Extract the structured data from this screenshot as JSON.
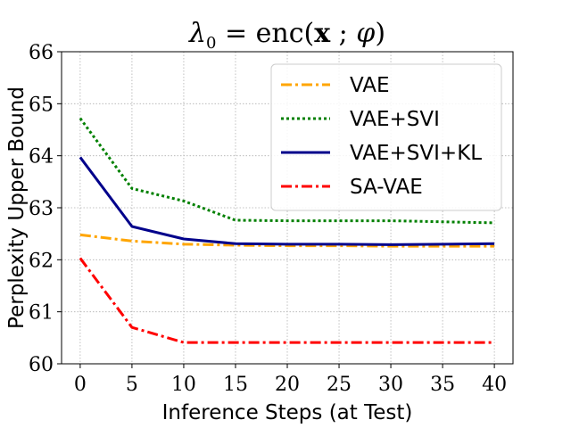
{
  "chart_data": {
    "type": "line",
    "title": "λ₀ = enc(x ; φ)",
    "title_parts": {
      "lambda": "λ",
      "subscript": "0",
      "eq": " = enc(",
      "bold_x": "x",
      "sep": " ; ",
      "phi": "φ",
      "close": ")"
    },
    "xlabel": "Inference Steps (at Test)",
    "ylabel": "Perplexity Upper Bound",
    "x": [
      0,
      5,
      10,
      15,
      20,
      25,
      30,
      35,
      40
    ],
    "xticks": [
      "0",
      "5",
      "10",
      "15",
      "20",
      "25",
      "30",
      "35",
      "40"
    ],
    "yticks": [
      "60",
      "61",
      "62",
      "63",
      "64",
      "65",
      "66"
    ],
    "xlim": [
      -1.8,
      41.8
    ],
    "ylim": [
      60,
      66
    ],
    "grid": true,
    "legend_position": "top-right",
    "series": [
      {
        "name": "VAE",
        "color": "#FFA500",
        "style": "dashdot",
        "values": [
          62.48,
          62.36,
          62.3,
          62.28,
          62.27,
          62.27,
          62.26,
          62.26,
          62.26
        ]
      },
      {
        "name": "VAE+SVI",
        "color": "#008000",
        "style": "dotted",
        "values": [
          64.72,
          63.37,
          63.13,
          62.76,
          62.75,
          62.75,
          62.75,
          62.73,
          62.71
        ]
      },
      {
        "name": "VAE+SVI+KL",
        "color": "#00008B",
        "style": "solid",
        "values": [
          63.97,
          62.64,
          62.4,
          62.31,
          62.3,
          62.3,
          62.29,
          62.3,
          62.31
        ]
      },
      {
        "name": "SA-VAE",
        "color": "#FF0000",
        "style": "dashdot",
        "values": [
          62.03,
          60.7,
          60.41,
          60.41,
          60.41,
          60.41,
          60.41,
          60.41,
          60.41
        ]
      }
    ]
  }
}
